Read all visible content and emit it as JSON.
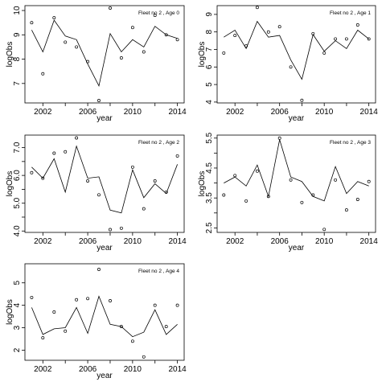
{
  "figure": {
    "background": "#ffffff",
    "ink": "#000000"
  },
  "chart_data": [
    {
      "type": "scatter",
      "title": "Fleet no 2 , Age 0",
      "xlabel": "year",
      "ylabel": "logObs",
      "xlim": [
        2000.4,
        2014.6
      ],
      "ylim": [
        6.2,
        10.2
      ],
      "xticks": [
        2002,
        2006,
        2010,
        2014
      ],
      "xticks_minor": [
        2004,
        2008,
        2012
      ],
      "yticks": [
        7,
        8,
        9,
        10
      ],
      "observed": {
        "x": [
          2001,
          2002,
          2003,
          2004,
          2005,
          2006,
          2007,
          2008,
          2009,
          2010,
          2011,
          2012,
          2013,
          2014
        ],
        "y": [
          9.5,
          7.4,
          9.7,
          8.7,
          8.5,
          7.9,
          6.3,
          10.1,
          8.05,
          9.3,
          8.3,
          9.8,
          9.0,
          8.8
        ]
      },
      "fitted": {
        "x": [
          2001,
          2002,
          2003,
          2004,
          2005,
          2006,
          2007,
          2008,
          2009,
          2010,
          2011,
          2012,
          2013,
          2014
        ],
        "y": [
          9.2,
          8.3,
          9.6,
          8.95,
          8.8,
          7.8,
          6.9,
          9.05,
          8.3,
          8.8,
          8.5,
          9.35,
          9.0,
          8.85
        ]
      }
    },
    {
      "type": "scatter",
      "title": "Fleet no 2 , Age 1",
      "xlabel": "year",
      "ylabel": "logObs",
      "xlim": [
        2000.4,
        2014.6
      ],
      "ylim": [
        3.95,
        9.5
      ],
      "xticks": [
        2002,
        2006,
        2010,
        2014
      ],
      "xticks_minor": [
        2004,
        2008,
        2012
      ],
      "yticks": [
        4,
        5,
        6,
        7,
        8,
        9
      ],
      "observed": {
        "x": [
          2001,
          2002,
          2003,
          2004,
          2005,
          2006,
          2007,
          2008,
          2009,
          2010,
          2011,
          2012,
          2013,
          2014
        ],
        "y": [
          6.8,
          7.8,
          7.2,
          9.4,
          8.0,
          8.3,
          6.0,
          4.1,
          7.9,
          6.8,
          7.6,
          7.6,
          8.4,
          7.6
        ]
      },
      "fitted": {
        "x": [
          2001,
          2002,
          2003,
          2004,
          2005,
          2006,
          2007,
          2008,
          2009,
          2010,
          2011,
          2012,
          2013,
          2014
        ],
        "y": [
          7.7,
          8.1,
          7.05,
          8.6,
          7.7,
          7.8,
          6.4,
          5.3,
          7.85,
          6.9,
          7.5,
          7.05,
          8.1,
          7.6
        ]
      }
    },
    {
      "type": "scatter",
      "title": "Fleet no 2 , Age 2",
      "xlabel": "year",
      "ylabel": "logObs",
      "xlim": [
        2000.4,
        2014.6
      ],
      "ylim": [
        3.95,
        7.45
      ],
      "xticks": [
        2002,
        2006,
        2010,
        2014
      ],
      "xticks_minor": [
        2004,
        2008,
        2012
      ],
      "yticks": [
        4.0,
        4.5,
        5.0,
        5.5,
        6.0,
        6.5,
        7.0
      ],
      "ytick_labels": [
        "4.0",
        "",
        "5.0",
        "",
        "6.0",
        "",
        "7.0"
      ],
      "observed": {
        "x": [
          2001,
          2002,
          2003,
          2004,
          2005,
          2006,
          2007,
          2008,
          2009,
          2010,
          2011,
          2012,
          2013,
          2014
        ],
        "y": [
          6.1,
          5.9,
          6.8,
          6.85,
          7.35,
          5.8,
          5.3,
          4.05,
          4.1,
          6.3,
          4.8,
          5.8,
          5.4,
          6.7
        ]
      },
      "fitted": {
        "x": [
          2001,
          2002,
          2003,
          2004,
          2005,
          2006,
          2007,
          2008,
          2009,
          2010,
          2011,
          2012,
          2013,
          2014
        ],
        "y": [
          6.3,
          5.9,
          6.6,
          5.4,
          7.05,
          5.9,
          5.95,
          4.75,
          4.65,
          6.2,
          5.2,
          5.7,
          5.35,
          6.4
        ]
      }
    },
    {
      "type": "scatter",
      "title": "Fleet no 2 , Age 3",
      "xlabel": "year",
      "ylabel": "logObs",
      "xlim": [
        2000.4,
        2014.6
      ],
      "ylim": [
        2.35,
        5.6
      ],
      "xticks": [
        2002,
        2006,
        2010,
        2014
      ],
      "xticks_minor": [
        2004,
        2008,
        2012
      ],
      "yticks": [
        2.5,
        3.0,
        3.5,
        4.0,
        4.5,
        5.0,
        5.5
      ],
      "ytick_labels": [
        "2.5",
        "",
        "3.5",
        "",
        "4.5",
        "",
        "5.5"
      ],
      "observed": {
        "x": [
          2001,
          2002,
          2003,
          2004,
          2005,
          2006,
          2007,
          2008,
          2009,
          2010,
          2011,
          2012,
          2013,
          2014
        ],
        "y": [
          3.6,
          4.25,
          3.4,
          4.4,
          3.55,
          5.5,
          4.1,
          3.35,
          3.6,
          2.45,
          4.1,
          3.1,
          3.45,
          4.05
        ]
      },
      "fitted": {
        "x": [
          2001,
          2002,
          2003,
          2004,
          2005,
          2006,
          2007,
          2008,
          2009,
          2010,
          2011,
          2012,
          2013,
          2014
        ],
        "y": [
          4.0,
          4.2,
          3.9,
          4.6,
          3.55,
          5.45,
          4.2,
          4.05,
          3.55,
          3.4,
          4.55,
          3.65,
          4.05,
          3.9
        ]
      }
    },
    {
      "type": "scatter",
      "title": "Fleet no 2 , Age 4",
      "xlabel": "year",
      "ylabel": "logObs",
      "xlim": [
        2000.4,
        2014.6
      ],
      "ylim": [
        1.55,
        5.85
      ],
      "xticks": [
        2002,
        2006,
        2010,
        2014
      ],
      "xticks_minor": [
        2004,
        2008,
        2012
      ],
      "yticks": [
        2,
        3,
        4,
        5
      ],
      "observed": {
        "x": [
          2001,
          2002,
          2003,
          2004,
          2005,
          2006,
          2007,
          2008,
          2009,
          2010,
          2011,
          2012,
          2013,
          2014
        ],
        "y": [
          4.35,
          2.55,
          3.7,
          2.85,
          4.25,
          4.3,
          5.6,
          4.2,
          3.05,
          2.4,
          1.7,
          4.0,
          3.05,
          4.0
        ]
      },
      "fitted": {
        "x": [
          2001,
          2002,
          2003,
          2004,
          2005,
          2006,
          2007,
          2008,
          2009,
          2010,
          2011,
          2012,
          2013,
          2014
        ],
        "y": [
          3.9,
          2.7,
          2.95,
          3.0,
          3.9,
          2.75,
          4.4,
          3.15,
          3.05,
          2.6,
          2.8,
          3.8,
          2.7,
          3.15
        ]
      }
    }
  ]
}
